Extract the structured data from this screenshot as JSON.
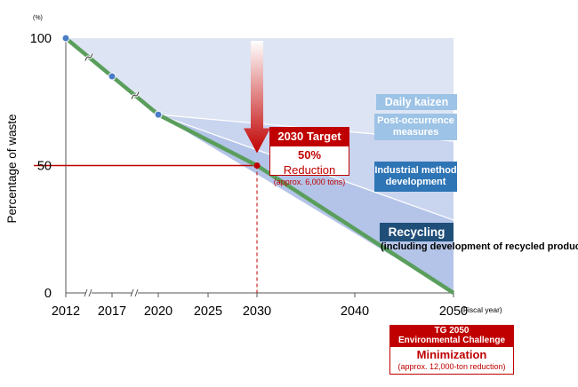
{
  "chart_data": {
    "type": "line",
    "title": "",
    "xlabel": "",
    "ylabel": "Percentage of waste",
    "y_unit": "(%)",
    "x_unit": "(Fiscal year)",
    "x_ticks": [
      "2012",
      "2017",
      "2020",
      "2025",
      "2030",
      "2040",
      "2050"
    ],
    "y_ticks": [
      "0",
      "50",
      "100"
    ],
    "ylim": [
      0,
      100
    ],
    "axis_break": "after 2012 and after 2017",
    "series": [
      {
        "color": "#5a9e5c",
        "x": [
          "2012",
          "2017",
          "2020",
          "2030",
          "2050"
        ],
        "y": [
          100,
          85,
          70,
          50,
          0
        ]
      }
    ],
    "point_color": "#4a7cc7",
    "areas": [
      {
        "label": "Daily kaizen",
        "color": "#9dc3e6"
      },
      {
        "label": "Post-occurrence measures",
        "color": "#9dc3e6"
      },
      {
        "label": "Industrial method development",
        "color": "#2e75b6"
      },
      {
        "label": "Recycling",
        "sublabel": "(including development of recycled products)",
        "color": "#1f4e79"
      }
    ],
    "target": {
      "title": "2030 Target",
      "value_text": "50%",
      "value_suffix": "Reduction",
      "note": "(approx. 6,000 tons)",
      "year": "2030",
      "y": 50,
      "color": "#c00000"
    },
    "challenge": {
      "title_line1": "TG 2050",
      "title_line2": "Environmental Challenge",
      "headline": "Minimization",
      "note": "(approx. 12,000-ton reduction)",
      "color": "#c00000"
    }
  }
}
